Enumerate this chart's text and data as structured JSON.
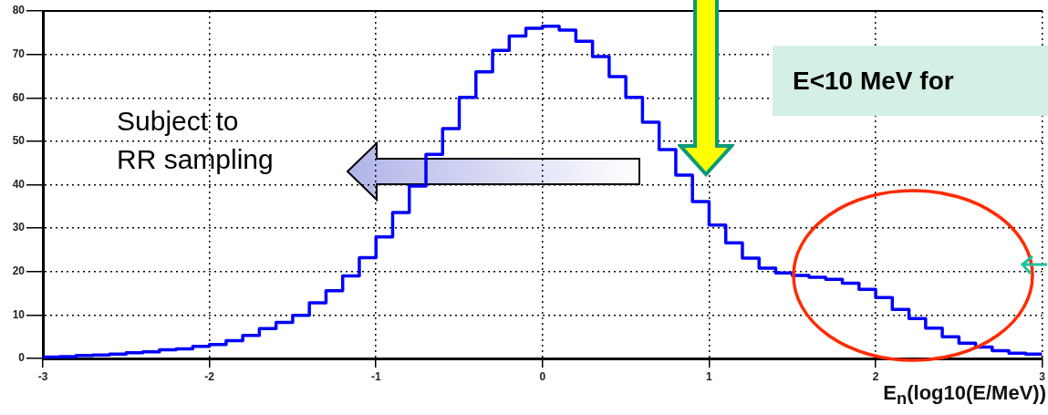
{
  "chart_data": {
    "type": "histogram",
    "xlabel": "E$_{n}$(log10(E/MeV))",
    "bins": [
      -3,
      -2.9,
      -2.8,
      -2.7,
      -2.6,
      -2.5,
      -2.4,
      -2.3,
      -2.2,
      -2.1,
      -2,
      -1.9,
      -1.8,
      -1.7,
      -1.6,
      -1.5,
      -1.4,
      -1.3,
      -1.2,
      -1.1,
      -1,
      -0.9,
      -0.8,
      -0.7,
      -0.6,
      -0.5,
      -0.4,
      -0.3,
      -0.2,
      -0.1,
      0,
      0.1,
      0.2,
      0.3,
      0.4,
      0.5,
      0.6,
      0.7,
      0.8,
      0.9,
      1,
      1.1,
      1.2,
      1.3,
      1.4,
      1.5,
      1.6,
      1.7,
      1.8,
      1.9,
      2,
      2.1,
      2.2,
      2.3,
      2.4,
      2.5,
      2.6,
      2.7,
      2.8,
      2.9,
      3
    ],
    "values": [
      0.3,
      0.4,
      0.7,
      0.8,
      1.0,
      1.3,
      1.5,
      2.0,
      2.2,
      2.8,
      3.2,
      4.1,
      5.3,
      6.9,
      8.3,
      9.9,
      12.8,
      15.6,
      19,
      23.2,
      28,
      33.6,
      39.7,
      47,
      52.9,
      60.1,
      66,
      70.9,
      74.2,
      76,
      76.5,
      75.6,
      73,
      69.5,
      64.9,
      60.1,
      54.4,
      48.1,
      42.2,
      36.1,
      30.7,
      26.6,
      23.1,
      20.8,
      19.7,
      19.1,
      18.7,
      18.2,
      17.3,
      15.9,
      14,
      11.3,
      9.2,
      7,
      5,
      3.5,
      2.6,
      1.8,
      1.2,
      1
    ],
    "color": "#0000ff",
    "xlim": [
      -3,
      3
    ],
    "xticks": [
      -3,
      -2,
      -1,
      0,
      1,
      2,
      3
    ],
    "ylim": [
      0,
      80
    ],
    "yticks": [
      0,
      10,
      20,
      30,
      40,
      50,
      60,
      70,
      80
    ],
    "grid": true,
    "line_style": "solid",
    "annotations": [
      "Subject to\nRR sampling",
      "E<10 MeV for"
    ]
  }
}
